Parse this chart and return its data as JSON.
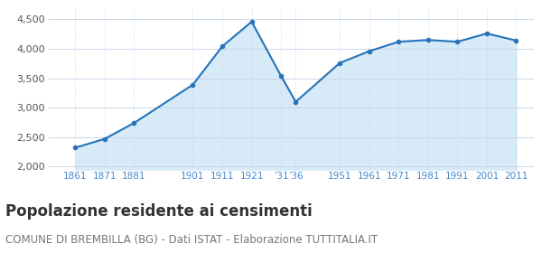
{
  "years": [
    1861,
    1871,
    1881,
    1901,
    1911,
    1921,
    1931,
    1936,
    1951,
    1961,
    1971,
    1981,
    1991,
    2001,
    2011
  ],
  "population": [
    2320,
    2470,
    2740,
    3390,
    4040,
    4460,
    3540,
    3100,
    3760,
    3960,
    4120,
    4150,
    4120,
    4260,
    4140
  ],
  "line_color": "#2673b8",
  "fill_color": "#d6eaf8",
  "marker_color": "#2673b8",
  "background_color": "#ffffff",
  "grid_color": "#c8d8e8",
  "title": "Popolazione residente ai censimenti",
  "subtitle": "COMUNE DI BREMBILLA (BG) - Dati ISTAT - Elaborazione TUTTITALIA.IT",
  "title_fontsize": 12,
  "subtitle_fontsize": 8.5,
  "title_color": "#333333",
  "subtitle_color": "#777777",
  "tick_label_color": "#4488cc",
  "ytick_label_color": "#555555",
  "ylim_bottom": 1950,
  "ylim_top": 4700,
  "yticks": [
    2000,
    2500,
    3000,
    3500,
    4000,
    4500
  ],
  "xlim_left": 1852,
  "xlim_right": 2017,
  "x_tick_positions": [
    1861,
    1871,
    1881,
    1901,
    1911,
    1921,
    1931,
    1936,
    1951,
    1961,
    1971,
    1981,
    1991,
    2001,
    2011
  ],
  "x_tick_labels": [
    "1861",
    "1871",
    "1881",
    "1901",
    "1911",
    "1921",
    "’31",
    "’36",
    "1951",
    "1961",
    "1971",
    "1981",
    "1991",
    "2001",
    "2011"
  ]
}
